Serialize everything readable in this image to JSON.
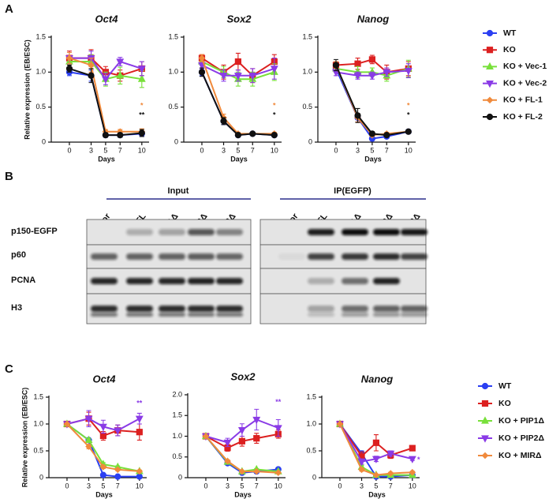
{
  "panel_labels": [
    "A",
    "B",
    "C"
  ],
  "blot": {
    "groups": [
      {
        "label": "Input",
        "lanes": [
          "Vector",
          "FL",
          "PIP1Δ",
          "MIRΔ",
          "PIP2Δ"
        ]
      },
      {
        "label": "IP(EGFP)",
        "lanes": [
          "Vector",
          "FL",
          "PIP1Δ",
          "MIRΔ",
          "PIP2Δ"
        ]
      }
    ],
    "rows": [
      "p150-EGFP",
      "p60",
      "PCNA",
      "H3"
    ]
  },
  "chart_data": [
    {
      "type": "line",
      "title": "Oct4",
      "xlabel": "Days",
      "ylabel": "Relative expression (EB/ESC)",
      "x": [
        0,
        3,
        5,
        7,
        10
      ],
      "xlim": [
        -2.5,
        11
      ],
      "xticks": [
        0,
        3,
        5,
        7,
        10
      ],
      "ylim": [
        0,
        1.5
      ],
      "yticks": [
        0,
        0.5,
        {
          "value": 1,
          "label": "1.0"
        },
        1.5
      ],
      "series": [
        {
          "name": "WT",
          "color": "#2b3ff2",
          "marker": "circle",
          "values": [
            1.0,
            0.95,
            0.1,
            0.1,
            0.12
          ],
          "errors": [
            0.05,
            0.08,
            0.03,
            0.03,
            0.04
          ]
        },
        {
          "name": "KO",
          "color": "#dc2020",
          "marker": "square",
          "values": [
            1.2,
            1.2,
            1.0,
            0.95,
            1.05
          ],
          "errors": [
            0.1,
            0.12,
            0.08,
            0.08,
            0.1
          ]
        },
        {
          "name": "KO + Vec-1",
          "color": "#78e03a",
          "marker": "triangle",
          "values": [
            1.15,
            1.15,
            0.9,
            0.95,
            0.9
          ],
          "errors": [
            0.08,
            0.1,
            0.1,
            0.12,
            0.12
          ]
        },
        {
          "name": "KO + Vec-2",
          "color": "#8a3be6",
          "marker": "triangle-down",
          "values": [
            1.2,
            1.2,
            0.9,
            1.15,
            1.05
          ],
          "errors": [
            0.08,
            0.1,
            0.08,
            0.06,
            0.1
          ]
        },
        {
          "name": "KO + FL-1",
          "color": "#f08a3c",
          "marker": "diamond",
          "values": [
            1.2,
            1.1,
            0.15,
            0.15,
            0.15
          ],
          "errors": [
            0.08,
            0.1,
            0.03,
            0.03,
            0.04
          ]
        },
        {
          "name": "KO + FL-2",
          "color": "#111111",
          "marker": "circle",
          "values": [
            1.05,
            0.95,
            0.1,
            0.1,
            0.13
          ],
          "errors": [
            0.05,
            0.1,
            0.03,
            0.03,
            0.05
          ]
        }
      ],
      "annotations": [
        {
          "text": "*",
          "x": 10,
          "y": 0.52,
          "color": "#f08a3c"
        },
        {
          "text": "**",
          "x": 10,
          "y": 0.38,
          "color": "#111111"
        }
      ]
    },
    {
      "type": "line",
      "title": "Sox2",
      "xlabel": "Days",
      "x": [
        0,
        3,
        5,
        7,
        10
      ],
      "xlim": [
        -2.5,
        11
      ],
      "xticks": [
        0,
        3,
        5,
        7,
        10
      ],
      "ylim": [
        0,
        1.5
      ],
      "yticks": [
        0,
        0.5,
        {
          "value": 1,
          "label": "1.0"
        },
        1.5
      ],
      "series": [
        {
          "name": "WT",
          "color": "#2b3ff2",
          "marker": "circle",
          "values": [
            1.0,
            0.3,
            0.1,
            0.12,
            0.1
          ],
          "errors": [
            0.05,
            0.05,
            0.03,
            0.02,
            0.02
          ]
        },
        {
          "name": "KO",
          "color": "#dc2020",
          "marker": "square",
          "values": [
            1.2,
            1.0,
            1.15,
            0.95,
            1.15
          ],
          "errors": [
            0.05,
            0.1,
            0.12,
            0.1,
            0.1
          ]
        },
        {
          "name": "KO + Vec-1",
          "color": "#78e03a",
          "marker": "triangle",
          "values": [
            1.15,
            1.0,
            0.9,
            0.9,
            1.0
          ],
          "errors": [
            0.05,
            0.08,
            0.1,
            0.1,
            0.12
          ]
        },
        {
          "name": "KO + Vec-2",
          "color": "#8a3be6",
          "marker": "triangle-down",
          "values": [
            1.1,
            0.95,
            0.95,
            0.95,
            1.05
          ],
          "errors": [
            0.05,
            0.08,
            0.08,
            0.1,
            0.15
          ]
        },
        {
          "name": "KO + FL-1",
          "color": "#f08a3c",
          "marker": "diamond",
          "values": [
            1.2,
            0.35,
            0.12,
            0.12,
            0.12
          ],
          "errors": [
            0.05,
            0.05,
            0.02,
            0.02,
            0.02
          ]
        },
        {
          "name": "KO + FL-2",
          "color": "#111111",
          "marker": "circle",
          "values": [
            1.0,
            0.3,
            0.1,
            0.12,
            0.1
          ],
          "errors": [
            0.06,
            0.05,
            0.02,
            0.02,
            0.02
          ]
        }
      ],
      "annotations": [
        {
          "text": "*",
          "x": 10,
          "y": 0.52,
          "color": "#f08a3c"
        },
        {
          "text": "*",
          "x": 10,
          "y": 0.38,
          "color": "#111111"
        }
      ]
    },
    {
      "type": "line",
      "title": "Nanog",
      "xlabel": "Days",
      "x": [
        0,
        3,
        5,
        7,
        10
      ],
      "xlim": [
        -2.5,
        11
      ],
      "xticks": [
        0,
        3,
        5,
        7,
        10
      ],
      "ylim": [
        0,
        1.5
      ],
      "yticks": [
        0,
        0.5,
        {
          "value": 1,
          "label": "1.0"
        },
        1.5
      ],
      "series": [
        {
          "name": "WT",
          "color": "#2b3ff2",
          "marker": "circle",
          "values": [
            1.05,
            0.35,
            0.05,
            0.08,
            0.15
          ],
          "errors": [
            0.05,
            0.06,
            0.02,
            0.02,
            0.02
          ]
        },
        {
          "name": "KO",
          "color": "#dc2020",
          "marker": "square",
          "values": [
            1.1,
            1.12,
            1.18,
            1.0,
            1.05
          ],
          "errors": [
            0.05,
            0.08,
            0.06,
            0.1,
            0.1
          ]
        },
        {
          "name": "KO + Vec-1",
          "color": "#78e03a",
          "marker": "triangle",
          "values": [
            1.05,
            1.0,
            1.0,
            0.95,
            1.05
          ],
          "errors": [
            0.05,
            0.08,
            0.06,
            0.08,
            0.12
          ]
        },
        {
          "name": "KO + Vec-2",
          "color": "#8a3be6",
          "marker": "triangle-down",
          "values": [
            1.0,
            0.95,
            0.95,
            1.0,
            1.02
          ],
          "errors": [
            0.05,
            0.05,
            0.05,
            0.06,
            0.1
          ]
        },
        {
          "name": "KO + FL-1",
          "color": "#f08a3c",
          "marker": "diamond",
          "values": [
            1.1,
            0.35,
            0.1,
            0.12,
            0.15
          ],
          "errors": [
            0.05,
            0.06,
            0.02,
            0.02,
            0.02
          ]
        },
        {
          "name": "KO + FL-2",
          "color": "#111111",
          "marker": "circle",
          "values": [
            1.1,
            0.38,
            0.12,
            0.1,
            0.15
          ],
          "errors": [
            0.08,
            0.1,
            0.03,
            0.02,
            0.02
          ]
        }
      ],
      "annotations": [
        {
          "text": "*",
          "x": 10,
          "y": 0.52,
          "color": "#f08a3c"
        },
        {
          "text": "*",
          "x": 10,
          "y": 0.38,
          "color": "#111111"
        }
      ]
    },
    {
      "type": "line",
      "title": "Oct4",
      "xlabel": "Days",
      "ylabel": "Relative expression (EB/ESC)",
      "x": [
        0,
        3,
        5,
        7,
        10
      ],
      "xlim": [
        -2.5,
        11
      ],
      "xticks": [
        0,
        3,
        5,
        7,
        10
      ],
      "ylim": [
        0,
        1.5
      ],
      "yticks": [
        0,
        0.5,
        {
          "value": 1,
          "label": "1.0"
        },
        1.5
      ],
      "series": [
        {
          "name": "WT",
          "color": "#2b3ff2",
          "marker": "circle",
          "values": [
            1.0,
            0.7,
            0.05,
            0.02,
            0.02
          ],
          "errors": [
            0.02,
            0.03,
            0.02,
            0.01,
            0.01
          ]
        },
        {
          "name": "KO",
          "color": "#dc2020",
          "marker": "square",
          "values": [
            1.0,
            1.1,
            0.78,
            0.88,
            0.85
          ],
          "errors": [
            0.02,
            0.12,
            0.08,
            0.1,
            0.15
          ]
        },
        {
          "name": "KO + PIP1Δ",
          "color": "#78e03a",
          "marker": "triangle",
          "values": [
            1.0,
            0.7,
            0.25,
            0.2,
            0.12
          ],
          "errors": [
            0.02,
            0.03,
            0.03,
            0.02,
            0.02
          ]
        },
        {
          "name": "KO + PIP2Δ",
          "color": "#8a3be6",
          "marker": "triangle-down",
          "values": [
            1.0,
            1.1,
            0.95,
            0.88,
            1.1
          ],
          "errors": [
            0.02,
            0.15,
            0.12,
            0.1,
            0.1
          ]
        },
        {
          "name": "KO + MIRΔ",
          "color": "#f08a3c",
          "marker": "diamond",
          "values": [
            1.0,
            0.58,
            0.2,
            0.15,
            0.12
          ],
          "errors": [
            0.02,
            0.04,
            0.03,
            0.02,
            0.02
          ]
        }
      ],
      "annotations": [
        {
          "text": "**",
          "x": 10,
          "y": 1.38,
          "color": "#8a3be6"
        }
      ]
    },
    {
      "type": "line",
      "title": "Sox2",
      "xlabel": "Days",
      "x": [
        0,
        3,
        5,
        7,
        10
      ],
      "xlim": [
        -2.5,
        11
      ],
      "xticks": [
        0,
        3,
        5,
        7,
        10
      ],
      "ylim": [
        0,
        2.0
      ],
      "yticks": [
        0,
        0.5,
        {
          "value": 1,
          "label": "1.0"
        },
        1.5,
        {
          "value": 2,
          "label": "2.0"
        }
      ],
      "series": [
        {
          "name": "WT",
          "color": "#2b3ff2",
          "marker": "circle",
          "values": [
            1.0,
            0.35,
            0.12,
            0.15,
            0.2
          ],
          "errors": [
            0.02,
            0.03,
            0.02,
            0.02,
            0.02
          ]
        },
        {
          "name": "KO",
          "color": "#dc2020",
          "marker": "square",
          "values": [
            1.0,
            0.72,
            0.88,
            0.95,
            1.05
          ],
          "errors": [
            0.02,
            0.08,
            0.12,
            0.12,
            0.1
          ]
        },
        {
          "name": "KO + PIP1Δ",
          "color": "#78e03a",
          "marker": "triangle",
          "values": [
            1.0,
            0.38,
            0.15,
            0.2,
            0.15
          ],
          "errors": [
            0.02,
            0.03,
            0.02,
            0.02,
            0.02
          ]
        },
        {
          "name": "KO + PIP2Δ",
          "color": "#8a3be6",
          "marker": "triangle-down",
          "values": [
            1.0,
            0.85,
            1.15,
            1.4,
            1.2
          ],
          "errors": [
            0.02,
            0.1,
            0.15,
            0.25,
            0.2
          ]
        },
        {
          "name": "KO + MIRΔ",
          "color": "#f08a3c",
          "marker": "diamond",
          "values": [
            1.0,
            0.4,
            0.15,
            0.15,
            0.12
          ],
          "errors": [
            0.02,
            0.03,
            0.02,
            0.02,
            0.02
          ]
        }
      ],
      "annotations": [
        {
          "text": "**",
          "x": 10,
          "y": 1.82,
          "color": "#8a3be6"
        }
      ]
    },
    {
      "type": "line",
      "title": "Nanog",
      "xlabel": "Days",
      "x": [
        0,
        3,
        5,
        7,
        10
      ],
      "xlim": [
        -2.5,
        11
      ],
      "xticks": [
        0,
        3,
        5,
        7,
        10
      ],
      "ylim": [
        0,
        1.5
      ],
      "yticks": [
        0,
        0.5,
        {
          "value": 1,
          "label": "1.0"
        },
        1.5
      ],
      "series": [
        {
          "name": "WT",
          "color": "#2b3ff2",
          "marker": "circle",
          "values": [
            1.0,
            0.45,
            0.02,
            0.02,
            0.05
          ],
          "errors": [
            0.02,
            0.05,
            0.01,
            0.01,
            0.01
          ]
        },
        {
          "name": "KO",
          "color": "#dc2020",
          "marker": "square",
          "values": [
            1.0,
            0.4,
            0.65,
            0.42,
            0.55
          ],
          "errors": [
            0.02,
            0.08,
            0.15,
            0.06,
            0.05
          ]
        },
        {
          "name": "KO + PIP1Δ",
          "color": "#78e03a",
          "marker": "triangle",
          "values": [
            1.0,
            0.2,
            0.05,
            0.05,
            0.05
          ],
          "errors": [
            0.02,
            0.03,
            0.01,
            0.01,
            0.01
          ]
        },
        {
          "name": "KO + PIP2Δ",
          "color": "#8a3be6",
          "marker": "triangle-down",
          "values": [
            1.0,
            0.3,
            0.35,
            0.45,
            0.35
          ],
          "errors": [
            0.02,
            0.05,
            0.05,
            0.05,
            0.03
          ]
        },
        {
          "name": "KO + MIRΔ",
          "color": "#f08a3c",
          "marker": "diamond",
          "values": [
            1.0,
            0.15,
            0.05,
            0.08,
            0.1
          ],
          "errors": [
            0.02,
            0.03,
            0.01,
            0.02,
            0.02
          ]
        }
      ],
      "annotations": [
        {
          "text": "*",
          "x": 10,
          "y": 0.33,
          "color": "#8a3be6"
        }
      ]
    }
  ]
}
